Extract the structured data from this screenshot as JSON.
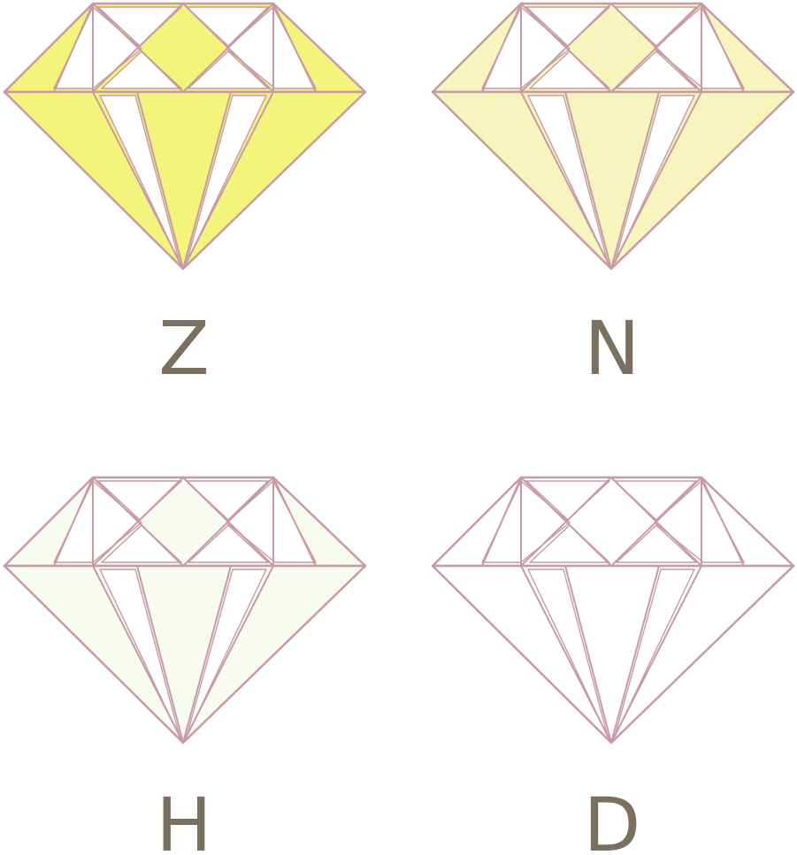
{
  "diagram": {
    "outline_color": "#c79aa6",
    "label_color": "#7a6f60",
    "facet_light_color": "#ffffff",
    "grades": [
      {
        "label": "Z",
        "fill_color": "#f4f47d"
      },
      {
        "label": "N",
        "fill_color": "#f5f5bd"
      },
      {
        "label": "H",
        "fill_color": "#f8fbf0"
      },
      {
        "label": "D",
        "fill_color": "#ffffff"
      }
    ]
  }
}
